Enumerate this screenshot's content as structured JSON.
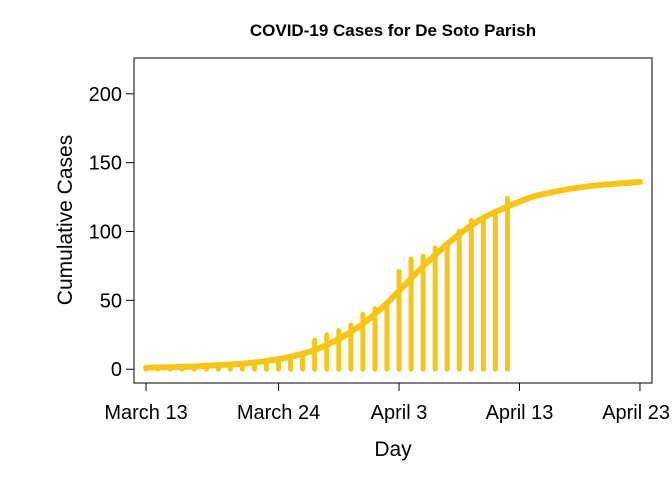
{
  "chart_data": {
    "type": "line",
    "title": "COVID-19 Cases for De Soto Parish",
    "xlabel": "Day",
    "ylabel": "Cumulative Cases",
    "x_ticks": [
      "March 13",
      "March 24",
      "April 3",
      "April 13",
      "April 23"
    ],
    "y_ticks": [
      0,
      50,
      100,
      150,
      200
    ],
    "ylim": [
      -10,
      226
    ],
    "xlim": [
      "2020-03-12",
      "2020-04-24"
    ],
    "grid": false,
    "legend": "none",
    "color": "#F5C518",
    "series": [
      {
        "kind": "bar",
        "x": [
          "2020-03-13",
          "2020-03-14",
          "2020-03-15",
          "2020-03-16",
          "2020-03-17",
          "2020-03-18",
          "2020-03-19",
          "2020-03-20",
          "2020-03-21",
          "2020-03-22",
          "2020-03-23",
          "2020-03-24",
          "2020-03-25",
          "2020-03-26",
          "2020-03-27",
          "2020-03-28",
          "2020-03-29",
          "2020-03-30",
          "2020-03-31",
          "2020-04-01",
          "2020-04-02",
          "2020-04-03",
          "2020-04-04",
          "2020-04-05",
          "2020-04-06",
          "2020-04-07",
          "2020-04-08",
          "2020-04-09",
          "2020-04-10",
          "2020-04-11",
          "2020-04-12"
        ],
        "values": [
          0,
          0,
          0,
          0,
          1,
          1,
          1,
          2,
          3,
          4,
          5,
          7,
          9,
          11,
          21,
          25,
          28,
          32,
          40,
          44,
          47,
          71,
          80,
          82,
          88,
          91,
          100,
          108,
          110,
          112,
          124
        ]
      },
      {
        "kind": "curve",
        "x": [
          "2020-03-13",
          "2020-03-15",
          "2020-03-17",
          "2020-03-19",
          "2020-03-21",
          "2020-03-23",
          "2020-03-25",
          "2020-03-27",
          "2020-03-29",
          "2020-03-31",
          "2020-04-02",
          "2020-04-04",
          "2020-04-06",
          "2020-04-08",
          "2020-04-10",
          "2020-04-12",
          "2020-04-14",
          "2020-04-16",
          "2020-04-18",
          "2020-04-20",
          "2020-04-23"
        ],
        "values": [
          1,
          1.5,
          2,
          3,
          4,
          6,
          9,
          14,
          22,
          33,
          48,
          66,
          83,
          98,
          110,
          118,
          125,
          129,
          132,
          134,
          136
        ]
      }
    ]
  }
}
